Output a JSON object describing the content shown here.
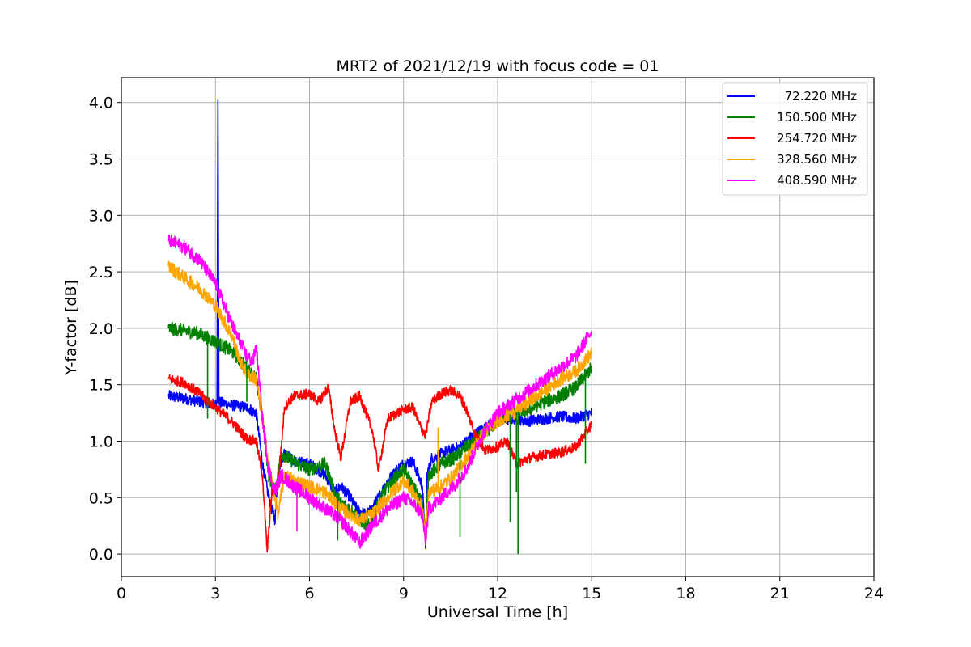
{
  "chart_data": {
    "type": "line",
    "title": "MRT2 of 2021/12/19 with focus code = 01",
    "xlabel": "Universal Time [h]",
    "ylabel": "Y-factor [dB]",
    "xlim": [
      0,
      24
    ],
    "ylim": [
      -0.2,
      4.22
    ],
    "xticks": [
      0,
      3,
      6,
      9,
      12,
      15,
      18,
      21,
      24
    ],
    "yticks": [
      0.0,
      0.5,
      1.0,
      1.5,
      2.0,
      2.5,
      3.0,
      3.5,
      4.0
    ],
    "ytick_labels": [
      "0.0",
      "0.5",
      "1.0",
      "1.5",
      "2.0",
      "2.5",
      "3.0",
      "3.5",
      "4.0"
    ],
    "grid": true,
    "legend_position": "top-right",
    "series": [
      {
        "name": "72.220 MHz",
        "color": "#0000ff",
        "noise": 0.05,
        "x": [
          1.5,
          2.0,
          2.5,
          3.0,
          3.05,
          3.08,
          3.11,
          3.2,
          3.5,
          4.0,
          4.3,
          4.5,
          4.7,
          4.8,
          4.9,
          5.0,
          5.2,
          5.5,
          6.0,
          6.5,
          6.8,
          7.0,
          7.3,
          7.5,
          7.8,
          8.0,
          8.5,
          8.8,
          9.0,
          9.3,
          9.6,
          9.7,
          9.75,
          9.9,
          10.3,
          10.8,
          11.2,
          11.6,
          12.0,
          12.5,
          13.0,
          13.5,
          14.0,
          14.5,
          15.0
        ],
        "y": [
          1.4,
          1.38,
          1.35,
          1.32,
          1.35,
          4.02,
          1.35,
          1.34,
          1.32,
          1.3,
          1.25,
          0.8,
          0.5,
          0.4,
          0.3,
          0.75,
          0.9,
          0.82,
          0.8,
          0.7,
          0.55,
          0.6,
          0.5,
          0.4,
          0.35,
          0.4,
          0.65,
          0.75,
          0.8,
          0.82,
          0.6,
          0.05,
          0.7,
          0.85,
          0.9,
          0.95,
          1.05,
          1.12,
          1.18,
          1.2,
          1.18,
          1.2,
          1.22,
          1.2,
          1.25
        ]
      },
      {
        "name": "150.500 MHz",
        "color": "#008000",
        "noise": 0.06,
        "x": [
          1.5,
          2.0,
          2.5,
          3.0,
          3.5,
          4.0,
          4.3,
          4.5,
          4.7,
          4.9,
          5.1,
          5.3,
          5.6,
          6.0,
          6.5,
          6.8,
          7.0,
          7.3,
          7.6,
          7.9,
          8.2,
          8.5,
          8.8,
          9.0,
          9.3,
          9.6,
          9.7,
          9.8,
          10.2,
          10.6,
          11.0,
          11.5,
          12.0,
          12.5,
          13.0,
          13.5,
          14.0,
          14.5,
          15.0
        ],
        "y": [
          2.0,
          1.98,
          1.95,
          1.88,
          1.8,
          1.65,
          1.55,
          1.2,
          0.7,
          0.55,
          0.9,
          0.85,
          0.8,
          0.75,
          0.8,
          0.55,
          0.45,
          0.4,
          0.3,
          0.25,
          0.45,
          0.6,
          0.7,
          0.75,
          0.6,
          0.45,
          0.2,
          0.7,
          0.8,
          0.85,
          0.95,
          1.05,
          1.18,
          1.25,
          1.28,
          1.35,
          1.4,
          1.48,
          1.65
        ]
      },
      {
        "name": "254.720 MHz",
        "color": "#ff0000",
        "noise": 0.045,
        "x": [
          1.5,
          2.0,
          2.5,
          3.0,
          3.5,
          4.0,
          4.3,
          4.5,
          4.6,
          4.65,
          4.8,
          5.0,
          5.2,
          5.5,
          6.0,
          6.3,
          6.6,
          6.8,
          7.0,
          7.3,
          7.6,
          8.0,
          8.2,
          8.5,
          8.8,
          9.0,
          9.3,
          9.5,
          9.7,
          9.9,
          10.2,
          10.5,
          10.8,
          11.0,
          11.3,
          11.6,
          12.0,
          12.3,
          12.6,
          13.0,
          13.5,
          14.0,
          14.5,
          15.0
        ],
        "y": [
          1.55,
          1.52,
          1.42,
          1.3,
          1.18,
          1.02,
          1.0,
          0.7,
          0.25,
          0.02,
          0.55,
          0.6,
          1.3,
          1.4,
          1.42,
          1.35,
          1.48,
          1.1,
          0.85,
          1.35,
          1.4,
          1.1,
          0.75,
          1.2,
          1.25,
          1.28,
          1.3,
          1.15,
          1.05,
          1.35,
          1.42,
          1.45,
          1.4,
          1.28,
          1.05,
          0.92,
          0.95,
          1.0,
          0.8,
          0.85,
          0.88,
          0.9,
          0.95,
          1.15
        ]
      },
      {
        "name": "328.560 MHz",
        "color": "#ffa500",
        "noise": 0.06,
        "x": [
          1.5,
          2.0,
          2.5,
          3.0,
          3.5,
          3.8,
          4.0,
          4.3,
          4.5,
          4.7,
          4.9,
          5.0,
          5.2,
          5.5,
          6.0,
          6.5,
          7.0,
          7.3,
          7.6,
          8.0,
          8.5,
          8.8,
          9.0,
          9.3,
          9.6,
          9.7,
          9.8,
          10.2,
          10.6,
          11.0,
          11.5,
          12.0,
          12.5,
          13.0,
          13.5,
          14.0,
          14.5,
          15.0
        ],
        "y": [
          2.55,
          2.45,
          2.35,
          2.2,
          1.95,
          1.7,
          1.6,
          1.55,
          1.2,
          0.8,
          0.5,
          0.35,
          0.7,
          0.65,
          0.6,
          0.55,
          0.4,
          0.35,
          0.3,
          0.35,
          0.5,
          0.6,
          0.65,
          0.55,
          0.4,
          0.15,
          0.55,
          0.6,
          0.7,
          0.85,
          1.05,
          1.18,
          1.25,
          1.35,
          1.45,
          1.55,
          1.62,
          1.78
        ]
      },
      {
        "name": "408.590 MHz",
        "color": "#ff00ff",
        "noise": 0.06,
        "x": [
          1.5,
          2.0,
          2.5,
          3.0,
          3.5,
          4.0,
          4.2,
          4.3,
          4.5,
          4.7,
          4.9,
          5.1,
          5.5,
          6.0,
          6.5,
          7.0,
          7.3,
          7.6,
          8.0,
          8.5,
          9.0,
          9.3,
          9.6,
          9.7,
          9.8,
          10.2,
          10.6,
          11.0,
          11.5,
          12.0,
          12.5,
          13.0,
          13.5,
          14.0,
          14.5,
          15.0
        ],
        "y": [
          2.78,
          2.72,
          2.6,
          2.4,
          2.05,
          1.75,
          1.7,
          1.85,
          1.2,
          0.75,
          0.55,
          0.7,
          0.6,
          0.5,
          0.4,
          0.3,
          0.2,
          0.1,
          0.25,
          0.4,
          0.5,
          0.45,
          0.35,
          0.1,
          0.4,
          0.5,
          0.6,
          0.75,
          1.05,
          1.25,
          1.35,
          1.45,
          1.55,
          1.65,
          1.75,
          1.98
        ]
      }
    ],
    "spikes": [
      {
        "series": 1,
        "x": 2.75,
        "y": 1.2
      },
      {
        "series": 1,
        "x": 4.0,
        "y": 1.35
      },
      {
        "series": 1,
        "x": 6.9,
        "y": 0.12
      },
      {
        "series": 1,
        "x": 10.8,
        "y": 0.15
      },
      {
        "series": 1,
        "x": 12.4,
        "y": 0.28
      },
      {
        "series": 1,
        "x": 12.6,
        "y": 0.55
      },
      {
        "series": 1,
        "x": 12.65,
        "y": 0.0
      },
      {
        "series": 1,
        "x": 14.8,
        "y": 0.8
      },
      {
        "series": 3,
        "x": 10.1,
        "y": 1.12
      },
      {
        "series": 4,
        "x": 5.6,
        "y": 0.2
      }
    ]
  }
}
